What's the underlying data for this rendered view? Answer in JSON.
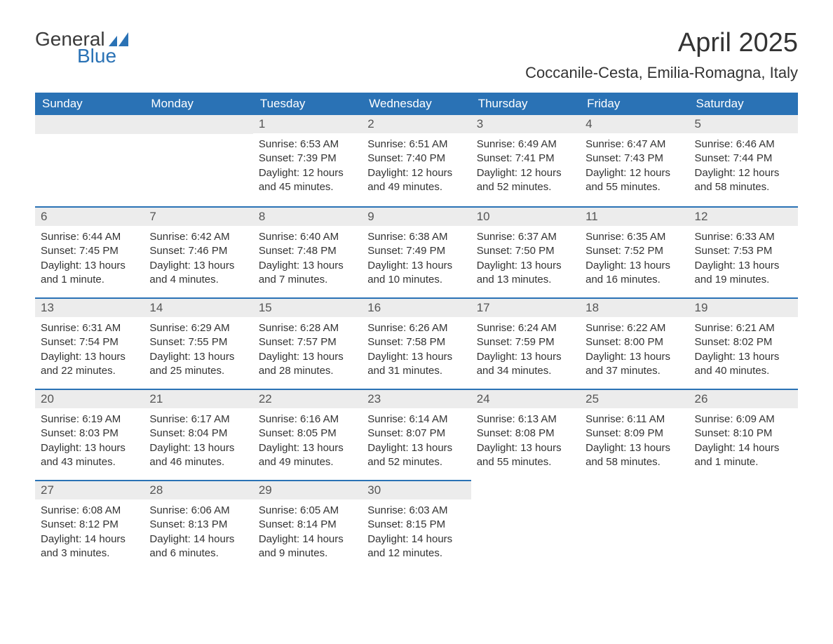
{
  "logo": {
    "text_general": "General",
    "text_blue": "Blue",
    "icon_color": "#2a72b5"
  },
  "title": "April 2025",
  "subtitle": "Coccanile-Cesta, Emilia-Romagna, Italy",
  "colors": {
    "header_bg": "#2a72b5",
    "header_text": "#ffffff",
    "day_number_bg": "#ececec",
    "day_number_text": "#555555",
    "row_separator": "#2a72b5",
    "body_text": "#333333",
    "background": "#ffffff"
  },
  "weekdays": [
    "Sunday",
    "Monday",
    "Tuesday",
    "Wednesday",
    "Thursday",
    "Friday",
    "Saturday"
  ],
  "weeks": [
    [
      null,
      null,
      {
        "day": "1",
        "sunrise": "Sunrise: 6:53 AM",
        "sunset": "Sunset: 7:39 PM",
        "daylight": "Daylight: 12 hours and 45 minutes."
      },
      {
        "day": "2",
        "sunrise": "Sunrise: 6:51 AM",
        "sunset": "Sunset: 7:40 PM",
        "daylight": "Daylight: 12 hours and 49 minutes."
      },
      {
        "day": "3",
        "sunrise": "Sunrise: 6:49 AM",
        "sunset": "Sunset: 7:41 PM",
        "daylight": "Daylight: 12 hours and 52 minutes."
      },
      {
        "day": "4",
        "sunrise": "Sunrise: 6:47 AM",
        "sunset": "Sunset: 7:43 PM",
        "daylight": "Daylight: 12 hours and 55 minutes."
      },
      {
        "day": "5",
        "sunrise": "Sunrise: 6:46 AM",
        "sunset": "Sunset: 7:44 PM",
        "daylight": "Daylight: 12 hours and 58 minutes."
      }
    ],
    [
      {
        "day": "6",
        "sunrise": "Sunrise: 6:44 AM",
        "sunset": "Sunset: 7:45 PM",
        "daylight": "Daylight: 13 hours and 1 minute."
      },
      {
        "day": "7",
        "sunrise": "Sunrise: 6:42 AM",
        "sunset": "Sunset: 7:46 PM",
        "daylight": "Daylight: 13 hours and 4 minutes."
      },
      {
        "day": "8",
        "sunrise": "Sunrise: 6:40 AM",
        "sunset": "Sunset: 7:48 PM",
        "daylight": "Daylight: 13 hours and 7 minutes."
      },
      {
        "day": "9",
        "sunrise": "Sunrise: 6:38 AM",
        "sunset": "Sunset: 7:49 PM",
        "daylight": "Daylight: 13 hours and 10 minutes."
      },
      {
        "day": "10",
        "sunrise": "Sunrise: 6:37 AM",
        "sunset": "Sunset: 7:50 PM",
        "daylight": "Daylight: 13 hours and 13 minutes."
      },
      {
        "day": "11",
        "sunrise": "Sunrise: 6:35 AM",
        "sunset": "Sunset: 7:52 PM",
        "daylight": "Daylight: 13 hours and 16 minutes."
      },
      {
        "day": "12",
        "sunrise": "Sunrise: 6:33 AM",
        "sunset": "Sunset: 7:53 PM",
        "daylight": "Daylight: 13 hours and 19 minutes."
      }
    ],
    [
      {
        "day": "13",
        "sunrise": "Sunrise: 6:31 AM",
        "sunset": "Sunset: 7:54 PM",
        "daylight": "Daylight: 13 hours and 22 minutes."
      },
      {
        "day": "14",
        "sunrise": "Sunrise: 6:29 AM",
        "sunset": "Sunset: 7:55 PM",
        "daylight": "Daylight: 13 hours and 25 minutes."
      },
      {
        "day": "15",
        "sunrise": "Sunrise: 6:28 AM",
        "sunset": "Sunset: 7:57 PM",
        "daylight": "Daylight: 13 hours and 28 minutes."
      },
      {
        "day": "16",
        "sunrise": "Sunrise: 6:26 AM",
        "sunset": "Sunset: 7:58 PM",
        "daylight": "Daylight: 13 hours and 31 minutes."
      },
      {
        "day": "17",
        "sunrise": "Sunrise: 6:24 AM",
        "sunset": "Sunset: 7:59 PM",
        "daylight": "Daylight: 13 hours and 34 minutes."
      },
      {
        "day": "18",
        "sunrise": "Sunrise: 6:22 AM",
        "sunset": "Sunset: 8:00 PM",
        "daylight": "Daylight: 13 hours and 37 minutes."
      },
      {
        "day": "19",
        "sunrise": "Sunrise: 6:21 AM",
        "sunset": "Sunset: 8:02 PM",
        "daylight": "Daylight: 13 hours and 40 minutes."
      }
    ],
    [
      {
        "day": "20",
        "sunrise": "Sunrise: 6:19 AM",
        "sunset": "Sunset: 8:03 PM",
        "daylight": "Daylight: 13 hours and 43 minutes."
      },
      {
        "day": "21",
        "sunrise": "Sunrise: 6:17 AM",
        "sunset": "Sunset: 8:04 PM",
        "daylight": "Daylight: 13 hours and 46 minutes."
      },
      {
        "day": "22",
        "sunrise": "Sunrise: 6:16 AM",
        "sunset": "Sunset: 8:05 PM",
        "daylight": "Daylight: 13 hours and 49 minutes."
      },
      {
        "day": "23",
        "sunrise": "Sunrise: 6:14 AM",
        "sunset": "Sunset: 8:07 PM",
        "daylight": "Daylight: 13 hours and 52 minutes."
      },
      {
        "day": "24",
        "sunrise": "Sunrise: 6:13 AM",
        "sunset": "Sunset: 8:08 PM",
        "daylight": "Daylight: 13 hours and 55 minutes."
      },
      {
        "day": "25",
        "sunrise": "Sunrise: 6:11 AM",
        "sunset": "Sunset: 8:09 PM",
        "daylight": "Daylight: 13 hours and 58 minutes."
      },
      {
        "day": "26",
        "sunrise": "Sunrise: 6:09 AM",
        "sunset": "Sunset: 8:10 PM",
        "daylight": "Daylight: 14 hours and 1 minute."
      }
    ],
    [
      {
        "day": "27",
        "sunrise": "Sunrise: 6:08 AM",
        "sunset": "Sunset: 8:12 PM",
        "daylight": "Daylight: 14 hours and 3 minutes."
      },
      {
        "day": "28",
        "sunrise": "Sunrise: 6:06 AM",
        "sunset": "Sunset: 8:13 PM",
        "daylight": "Daylight: 14 hours and 6 minutes."
      },
      {
        "day": "29",
        "sunrise": "Sunrise: 6:05 AM",
        "sunset": "Sunset: 8:14 PM",
        "daylight": "Daylight: 14 hours and 9 minutes."
      },
      {
        "day": "30",
        "sunrise": "Sunrise: 6:03 AM",
        "sunset": "Sunset: 8:15 PM",
        "daylight": "Daylight: 14 hours and 12 minutes."
      },
      null,
      null,
      null
    ]
  ]
}
